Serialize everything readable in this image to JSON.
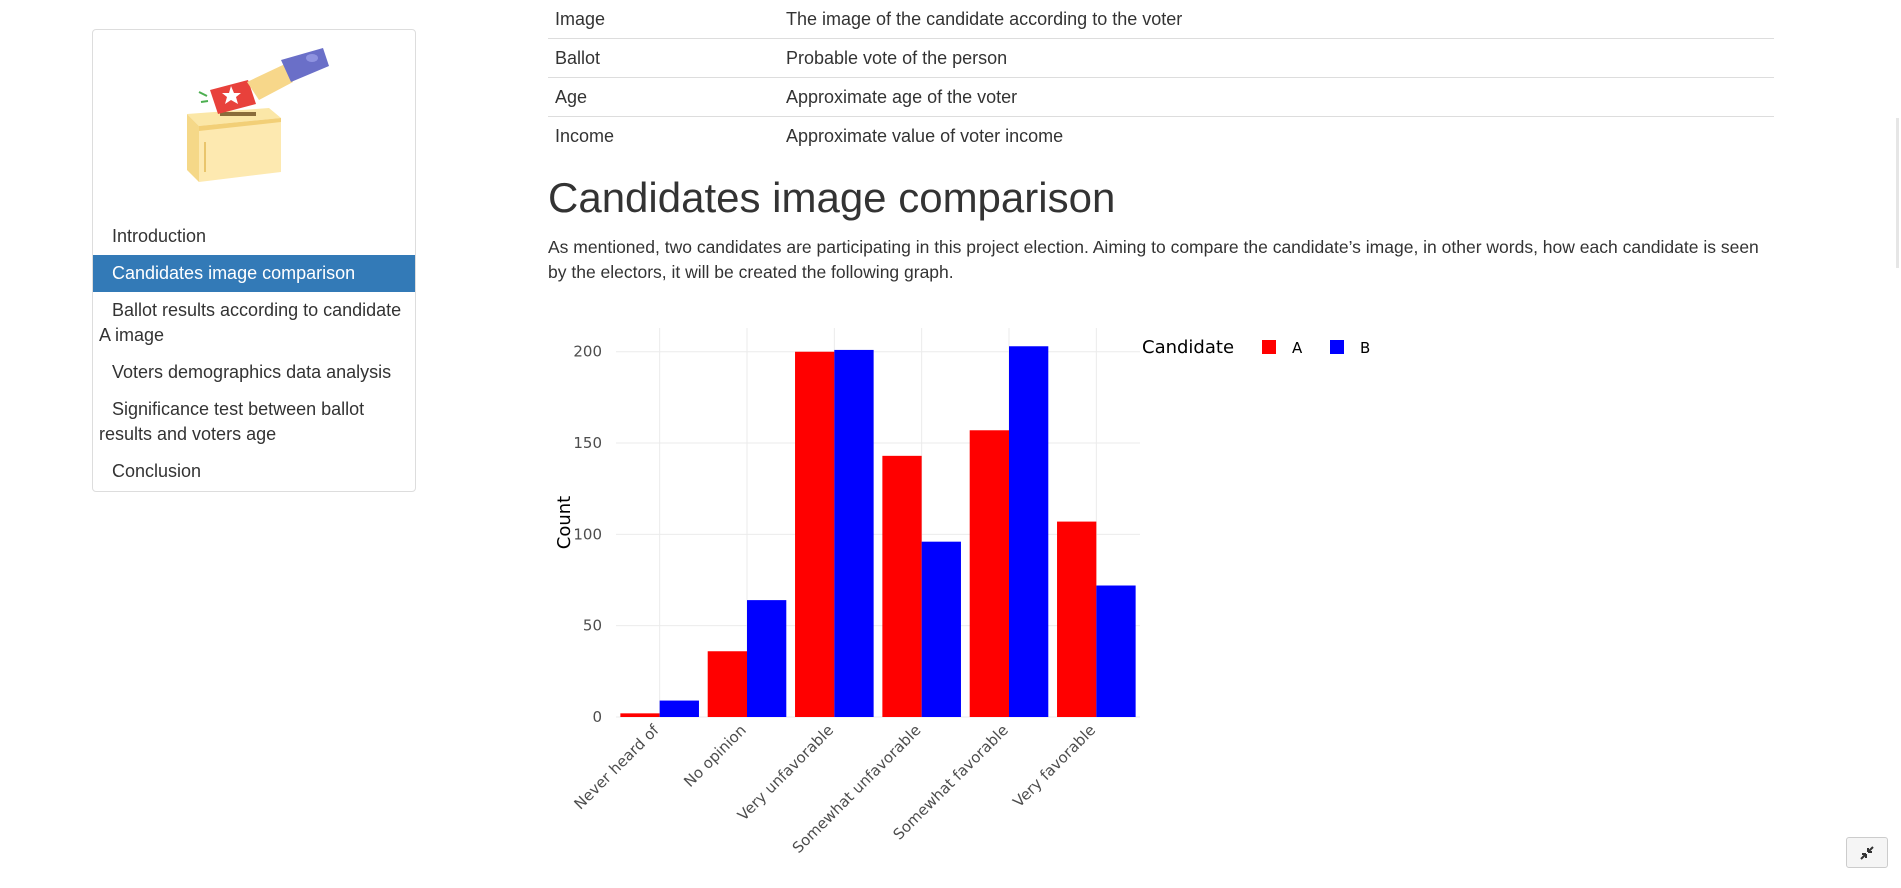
{
  "sidebar": {
    "items": [
      {
        "label": "Introduction",
        "active": false
      },
      {
        "label": "Candidates image comparison",
        "active": true
      },
      {
        "label": "Ballot results according to candidate A image",
        "active": false
      },
      {
        "label": "Voters demographics data analysis",
        "active": false
      },
      {
        "label": "Significance test between ballot results and voters age",
        "active": false
      },
      {
        "label": "Conclusion",
        "active": false
      }
    ],
    "illustration": "ballot-box-illustration"
  },
  "variables_table": {
    "rows": [
      {
        "name": "Image",
        "description": "The image of the candidate according to the voter"
      },
      {
        "name": "Ballot",
        "description": "Probable vote of the person"
      },
      {
        "name": "Age",
        "description": "Approximate age of the voter"
      },
      {
        "name": "Income",
        "description": "Approximate value of voter income"
      }
    ]
  },
  "section": {
    "title": "Candidates image comparison",
    "description": "As mentioned, two candidates are participating in this project election. Aiming to compare the candidate’s image, in other words, how each candidate is seen by the electors, it will be created the following graph."
  },
  "chart_data": {
    "type": "bar",
    "categories": [
      "Never heard of",
      "No opinion",
      "Very unfavorable",
      "Somewhat unfavorable",
      "Somewhat favorable",
      "Very favorable"
    ],
    "series": [
      {
        "name": "A",
        "color": "#ff0000",
        "values": [
          2,
          36,
          200,
          143,
          157,
          107
        ]
      },
      {
        "name": "B",
        "color": "#0000ff",
        "values": [
          9,
          64,
          201,
          96,
          203,
          72
        ]
      }
    ],
    "title": "",
    "xlabel": "",
    "ylabel": "Count",
    "yticks": [
      0,
      50,
      100,
      150,
      200
    ],
    "ylim": [
      0,
      213
    ],
    "legend_title": "Candidate",
    "legend_position": "top-right",
    "grid": true
  },
  "controls": {
    "fullscreen_icon": "collapse-arrows-icon"
  }
}
